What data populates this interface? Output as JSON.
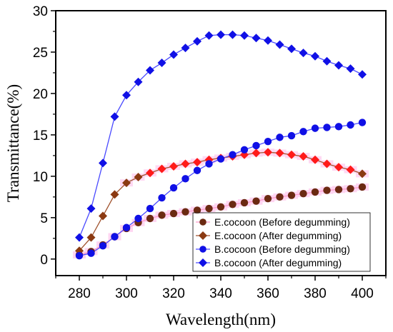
{
  "chart_data": {
    "type": "line",
    "xlabel": "Wavelength(nm)",
    "ylabel": "Transmittance(%)",
    "xlim": [
      270,
      410
    ],
    "ylim": [
      -2,
      30
    ],
    "x_ticks": [
      280,
      300,
      320,
      340,
      360,
      380,
      400
    ],
    "y_ticks": [
      0,
      5,
      10,
      15,
      20,
      25,
      30
    ],
    "grid": false,
    "legend_position": "bottom-right",
    "x": [
      280,
      285,
      290,
      295,
      300,
      305,
      310,
      315,
      320,
      325,
      330,
      335,
      340,
      345,
      350,
      355,
      360,
      365,
      370,
      375,
      380,
      385,
      390,
      395,
      400
    ],
    "series": [
      {
        "name": "E.cocoon (Before degumming)",
        "marker": "circle",
        "color": "#6b2a12",
        "line_color": "#ff9acb",
        "values": [
          0.5,
          0.9,
          1.7,
          2.7,
          3.7,
          4.4,
          4.9,
          5.3,
          5.5,
          5.7,
          5.9,
          6.1,
          6.3,
          6.6,
          6.8,
          7.0,
          7.3,
          7.5,
          7.7,
          7.9,
          8.1,
          8.3,
          8.4,
          8.5,
          8.7
        ]
      },
      {
        "name": "E.cocoon (After degumming)",
        "marker": "diamond",
        "color": "#8b3a12",
        "line_color": "#a0522d",
        "values": [
          1.0,
          2.6,
          5.2,
          7.8,
          9.2,
          9.9,
          10.4,
          10.9,
          11.2,
          11.5,
          11.7,
          12.0,
          12.2,
          12.4,
          12.6,
          12.8,
          12.9,
          12.8,
          12.6,
          12.4,
          12.0,
          11.5,
          11.1,
          10.8,
          10.3
        ]
      },
      {
        "name": "B.cocoon (Before degumming)",
        "marker": "circle",
        "color": "#1010e6",
        "line_color": "#4a4aff",
        "values": [
          0.4,
          0.7,
          1.6,
          2.7,
          3.8,
          4.9,
          6.1,
          7.4,
          8.6,
          9.7,
          10.7,
          11.5,
          12.1,
          12.6,
          13.2,
          13.7,
          14.2,
          14.7,
          14.9,
          15.4,
          15.8,
          15.9,
          16.0,
          16.2,
          16.5
        ]
      },
      {
        "name": "B.cocoon (After degumming)",
        "marker": "diamond",
        "color": "#1010e6",
        "line_color": "#4a4aff",
        "values": [
          2.6,
          6.1,
          11.6,
          17.2,
          19.8,
          21.4,
          22.8,
          23.7,
          24.7,
          25.5,
          26.3,
          27.0,
          27.1,
          27.1,
          27.0,
          26.7,
          26.4,
          25.9,
          25.4,
          24.9,
          24.5,
          23.9,
          23.4,
          23.0,
          22.3
        ]
      }
    ]
  },
  "background_highlight_color": "#ffcff0",
  "red_highlight_color": "#ff1a1a"
}
